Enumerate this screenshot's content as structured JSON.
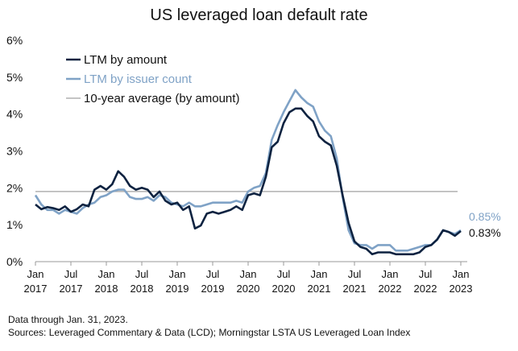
{
  "chart_data": {
    "type": "line",
    "title": "US leveraged loan default rate",
    "xlabel": "",
    "ylabel": "",
    "ylim": [
      0,
      6
    ],
    "x_range": [
      "2017-01",
      "2023-01"
    ],
    "grid": false,
    "legend_position": "top-left",
    "y_ticks": [
      "0%",
      "1%",
      "2%",
      "3%",
      "4%",
      "5%",
      "6%"
    ],
    "x_ticks": [
      {
        "month": "Jan",
        "year": "2017"
      },
      {
        "month": "Jul",
        "year": "2017"
      },
      {
        "month": "Jan",
        "year": "2018"
      },
      {
        "month": "Jul",
        "year": "2018"
      },
      {
        "month": "Jan",
        "year": "2019"
      },
      {
        "month": "Jul",
        "year": "2019"
      },
      {
        "month": "Jan",
        "year": "2020"
      },
      {
        "month": "Jul",
        "year": "2020"
      },
      {
        "month": "Jan",
        "year": "2021"
      },
      {
        "month": "Jul",
        "year": "2021"
      },
      {
        "month": "Jan",
        "year": "2022"
      },
      {
        "month": "Jul",
        "year": "2022"
      },
      {
        "month": "Jan",
        "year": "2023"
      }
    ],
    "series": [
      {
        "name": "LTM by amount",
        "color": "#0d2240",
        "end_label": "0.83%",
        "x": [
          "2017-01",
          "2017-02",
          "2017-03",
          "2017-04",
          "2017-05",
          "2017-06",
          "2017-07",
          "2017-08",
          "2017-09",
          "2017-10",
          "2017-11",
          "2017-12",
          "2018-01",
          "2018-02",
          "2018-03",
          "2018-04",
          "2018-05",
          "2018-06",
          "2018-07",
          "2018-08",
          "2018-09",
          "2018-10",
          "2018-11",
          "2018-12",
          "2019-01",
          "2019-02",
          "2019-03",
          "2019-04",
          "2019-05",
          "2019-06",
          "2019-07",
          "2019-08",
          "2019-09",
          "2019-10",
          "2019-11",
          "2019-12",
          "2020-01",
          "2020-02",
          "2020-03",
          "2020-04",
          "2020-05",
          "2020-06",
          "2020-07",
          "2020-08",
          "2020-09",
          "2020-10",
          "2020-11",
          "2020-12",
          "2021-01",
          "2021-02",
          "2021-03",
          "2021-04",
          "2021-05",
          "2021-06",
          "2021-07",
          "2021-08",
          "2021-09",
          "2021-10",
          "2021-11",
          "2021-12",
          "2022-01",
          "2022-02",
          "2022-03",
          "2022-04",
          "2022-05",
          "2022-06",
          "2022-07",
          "2022-08",
          "2022-09",
          "2022-10",
          "2022-11",
          "2022-12",
          "2023-01"
        ],
        "values": [
          1.55,
          1.42,
          1.48,
          1.45,
          1.4,
          1.5,
          1.35,
          1.42,
          1.55,
          1.5,
          1.95,
          2.05,
          1.95,
          2.1,
          2.45,
          2.3,
          2.05,
          1.95,
          2.0,
          1.95,
          1.75,
          1.9,
          1.65,
          1.55,
          1.6,
          1.4,
          1.5,
          0.9,
          0.98,
          1.3,
          1.35,
          1.3,
          1.35,
          1.4,
          1.5,
          1.4,
          1.8,
          1.85,
          1.8,
          2.3,
          3.1,
          3.25,
          3.75,
          4.05,
          4.15,
          4.15,
          3.95,
          3.8,
          3.4,
          3.25,
          3.15,
          2.6,
          1.8,
          1.05,
          0.55,
          0.4,
          0.35,
          0.2,
          0.25,
          0.25,
          0.25,
          0.2,
          0.2,
          0.2,
          0.2,
          0.25,
          0.4,
          0.45,
          0.6,
          0.85,
          0.8,
          0.7,
          0.83
        ]
      },
      {
        "name": "LTM by issuer count",
        "color": "#7fa2c6",
        "end_label": "0.85%",
        "x": [
          "2017-01",
          "2017-02",
          "2017-03",
          "2017-04",
          "2017-05",
          "2017-06",
          "2017-07",
          "2017-08",
          "2017-09",
          "2017-10",
          "2017-11",
          "2017-12",
          "2018-01",
          "2018-02",
          "2018-03",
          "2018-04",
          "2018-05",
          "2018-06",
          "2018-07",
          "2018-08",
          "2018-09",
          "2018-10",
          "2018-11",
          "2018-12",
          "2019-01",
          "2019-02",
          "2019-03",
          "2019-04",
          "2019-05",
          "2019-06",
          "2019-07",
          "2019-08",
          "2019-09",
          "2019-10",
          "2019-11",
          "2019-12",
          "2020-01",
          "2020-02",
          "2020-03",
          "2020-04",
          "2020-05",
          "2020-06",
          "2020-07",
          "2020-08",
          "2020-09",
          "2020-10",
          "2020-11",
          "2020-12",
          "2021-01",
          "2021-02",
          "2021-03",
          "2021-04",
          "2021-05",
          "2021-06",
          "2021-07",
          "2021-08",
          "2021-09",
          "2021-10",
          "2021-11",
          "2021-12",
          "2022-01",
          "2022-02",
          "2022-03",
          "2022-04",
          "2022-05",
          "2022-06",
          "2022-07",
          "2022-08",
          "2022-09",
          "2022-10",
          "2022-11",
          "2022-12",
          "2023-01"
        ],
        "values": [
          1.8,
          1.55,
          1.4,
          1.4,
          1.3,
          1.4,
          1.35,
          1.3,
          1.45,
          1.55,
          1.6,
          1.75,
          1.8,
          1.9,
          1.95,
          1.95,
          1.75,
          1.7,
          1.7,
          1.75,
          1.65,
          1.8,
          1.75,
          1.6,
          1.55,
          1.5,
          1.6,
          1.5,
          1.5,
          1.55,
          1.6,
          1.6,
          1.6,
          1.6,
          1.65,
          1.6,
          1.9,
          2.0,
          2.05,
          2.4,
          3.3,
          3.7,
          4.05,
          4.35,
          4.65,
          4.45,
          4.3,
          4.2,
          3.8,
          3.55,
          3.4,
          2.8,
          1.75,
          0.85,
          0.5,
          0.45,
          0.45,
          0.35,
          0.45,
          0.45,
          0.45,
          0.3,
          0.3,
          0.3,
          0.35,
          0.4,
          0.45,
          0.45,
          0.6,
          0.85,
          0.8,
          0.75,
          0.85
        ]
      }
    ],
    "reference_lines": [
      {
        "name": "10-year average (by amount)",
        "value": 1.9,
        "color": "#b0b0b0"
      }
    ],
    "notes": [
      "Data through Jan. 31, 2023.",
      "Sources: Leveraged Commentary & Data (LCD); Morningstar LSTA US Leveraged Loan Index"
    ]
  }
}
